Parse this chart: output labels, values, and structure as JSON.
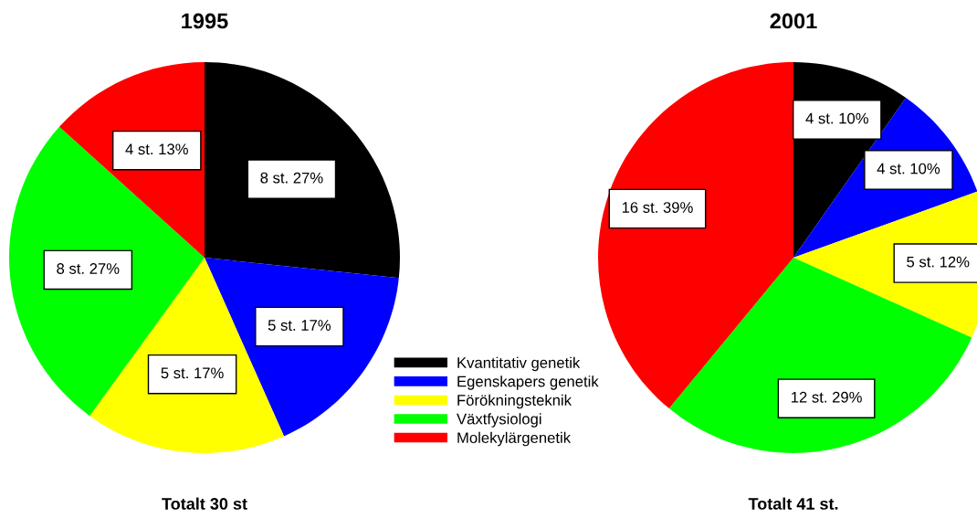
{
  "chart_data": [
    {
      "type": "pie",
      "title": "1995",
      "categories": [
        "Kvantitativ genetik",
        "Egenskapers genetik",
        "Förökningsteknik",
        "Växtfysiologi",
        "Molekylärgenetik"
      ],
      "values": [
        8,
        5,
        5,
        8,
        4
      ],
      "value_labels": [
        "8 st. 27%",
        "5 st. 17%",
        "5 st. 17%",
        "8 st. 27%",
        "4 st. 13%"
      ],
      "colors": [
        "#000000",
        "#0000ff",
        "#ffff00",
        "#00ff00",
        "#ff0000"
      ],
      "legend": "bottom right",
      "annotations": [
        "Totalt 30 st"
      ]
    },
    {
      "type": "pie",
      "title": "2001",
      "categories": [
        null,
        null,
        null,
        null,
        null
      ],
      "values": [
        4,
        4,
        5,
        12,
        16
      ],
      "value_labels": [
        "4 st. 10%",
        "4 st. 10%",
        "5 st. 12%",
        "12 st. 29%",
        "16 st. 39%"
      ],
      "colors": [
        "#000000",
        "#0000ff",
        "#ffff00",
        "#00ff00",
        "#ff0000"
      ],
      "annotations": [
        "Totalt 41 st."
      ]
    }
  ]
}
